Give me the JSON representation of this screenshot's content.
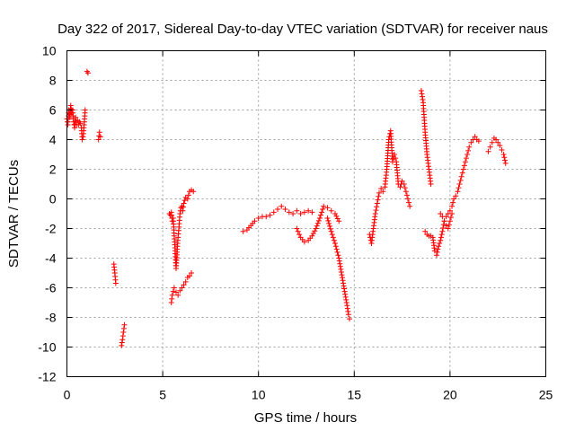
{
  "chart_data": {
    "type": "scatter",
    "title": "Day 322 of 2017, Sidereal Day-to-day VTEC variation (SDTVAR) for receiver naus",
    "xlabel": "GPS time / hours",
    "ylabel": "SDTVAR / TECUs",
    "xlim": [
      0,
      25
    ],
    "ylim": [
      -12,
      10
    ],
    "x_ticks": [
      0,
      5,
      10,
      15,
      20,
      25
    ],
    "x_tick_labels": [
      "0",
      "5",
      "10",
      "15",
      "20",
      "25"
    ],
    "y_ticks": [
      -12,
      -10,
      -8,
      -6,
      -4,
      -2,
      0,
      2,
      4,
      6,
      8,
      10
    ],
    "y_tick_labels": [
      "-12",
      "-10",
      "-8",
      "-6",
      "-4",
      "-2",
      "0",
      "2",
      "4",
      "6",
      "8",
      "10"
    ],
    "grid": true,
    "marker": "+",
    "color": "#ff0000",
    "series": [
      {
        "name": "SDTVAR",
        "x": [
          0.0,
          0.05,
          0.1,
          0.15,
          0.2,
          0.25,
          0.3,
          0.35,
          0.4,
          0.45,
          0.5,
          0.55,
          0.6,
          0.65,
          0.7,
          0.75,
          0.8,
          0.85,
          0.9,
          0.95,
          1.05,
          1.1,
          1.65,
          1.7,
          1.75,
          2.45,
          2.5,
          2.55,
          2.85,
          2.9,
          2.95,
          3.0,
          5.35,
          5.4,
          5.45,
          5.5,
          5.55,
          5.6,
          5.65,
          5.7,
          5.75,
          5.8,
          5.85,
          5.9,
          5.95,
          6.0,
          6.05,
          6.1,
          6.2,
          6.3,
          6.4,
          6.5,
          6.6,
          5.45,
          5.5,
          5.6,
          5.7,
          5.8,
          5.9,
          6.0,
          6.1,
          6.2,
          6.3,
          6.4,
          6.5,
          9.2,
          9.4,
          9.6,
          9.8,
          10.0,
          10.2,
          10.4,
          10.6,
          10.8,
          11.0,
          11.2,
          11.4,
          11.6,
          11.8,
          12.0,
          12.2,
          12.4,
          12.6,
          12.8,
          12.0,
          12.2,
          12.4,
          12.6,
          12.8,
          13.0,
          13.2,
          13.4,
          13.6,
          13.8,
          14.0,
          14.2,
          13.6,
          13.8,
          14.0,
          14.2,
          14.4,
          14.6,
          14.7,
          14.75,
          15.8,
          15.9,
          16.0,
          16.1,
          16.2,
          16.3,
          16.4,
          16.5,
          16.6,
          16.7,
          16.8,
          16.9,
          17.0,
          17.1,
          17.2,
          17.3,
          17.4,
          17.5,
          17.6,
          17.7,
          17.8,
          17.9,
          18.5,
          18.6,
          18.65,
          18.7,
          18.8,
          18.9,
          19.0,
          18.7,
          18.8,
          18.9,
          19.0,
          19.1,
          19.2,
          19.3,
          19.4,
          19.5,
          19.6,
          19.7,
          19.8,
          19.9,
          20.0,
          20.1,
          20.2,
          20.3,
          20.4,
          20.5,
          20.6,
          20.7,
          20.8,
          20.9,
          21.0,
          21.1,
          21.2,
          21.3,
          21.4,
          21.5,
          19.5,
          19.6,
          19.7,
          19.8,
          19.9,
          20.0,
          20.1,
          22.0,
          22.1,
          22.2,
          22.3,
          22.4,
          22.5,
          22.6,
          22.7,
          22.8,
          22.9
        ],
        "y": [
          5.4,
          5.0,
          6.0,
          5.5,
          6.3,
          5.8,
          6.0,
          5.2,
          4.8,
          5.5,
          5.0,
          5.3,
          5.0,
          5.2,
          5.1,
          4.8,
          4.0,
          4.2,
          5.0,
          6.0,
          8.6,
          8.5,
          4.0,
          4.5,
          4.2,
          -4.4,
          -5.0,
          -5.7,
          -9.9,
          -9.5,
          -9.0,
          -8.5,
          -1.0,
          -1.1,
          -0.9,
          -1.5,
          -1.3,
          -2.5,
          -3.5,
          -4.7,
          -3.6,
          -2.6,
          -1.9,
          -1.0,
          -0.6,
          -0.5,
          -0.8,
          -0.3,
          0.1,
          0.0,
          0.5,
          0.6,
          0.5,
          -7.0,
          -6.5,
          -6.0,
          -6.3,
          -6.5,
          -6.2,
          -6.0,
          -5.8,
          -5.6,
          -5.3,
          -5.2,
          -5.0,
          -2.2,
          -2.1,
          -1.8,
          -1.5,
          -1.3,
          -1.2,
          -1.2,
          -1.1,
          -0.9,
          -0.7,
          -0.5,
          -0.7,
          -0.9,
          -1.0,
          -0.8,
          -1.0,
          -0.9,
          -0.8,
          -0.9,
          -2.0,
          -2.6,
          -2.9,
          -2.8,
          -2.5,
          -2.0,
          -1.3,
          -0.5,
          -0.6,
          -0.8,
          -1.0,
          -1.5,
          -1.3,
          -2.2,
          -3.0,
          -4.0,
          -5.5,
          -7.0,
          -7.8,
          -8.1,
          -2.4,
          -3.0,
          -2.0,
          -1.0,
          -0.3,
          0.4,
          0.7,
          0.5,
          0.8,
          2.0,
          4.0,
          4.6,
          2.5,
          3.0,
          2.5,
          1.0,
          0.8,
          1.2,
          1.0,
          0.5,
          0.0,
          -0.5,
          7.3,
          6.5,
          5.5,
          4.5,
          3.0,
          2.0,
          1.0,
          -2.2,
          -2.4,
          -2.5,
          -2.5,
          -2.6,
          -3.5,
          -3.8,
          -3.2,
          -2.8,
          -2.2,
          -1.5,
          -1.2,
          -1.0,
          -0.8,
          -0.5,
          0.0,
          0.2,
          0.5,
          1.0,
          1.5,
          2.0,
          2.5,
          3.0,
          3.5,
          3.8,
          4.0,
          4.2,
          4.0,
          3.9,
          -1.0,
          -1.2,
          -1.5,
          -1.8,
          -2.0,
          -1.5,
          -1.0,
          3.2,
          3.5,
          3.8,
          4.1,
          4.0,
          3.8,
          3.6,
          3.3,
          3.0,
          2.4
        ]
      }
    ]
  }
}
